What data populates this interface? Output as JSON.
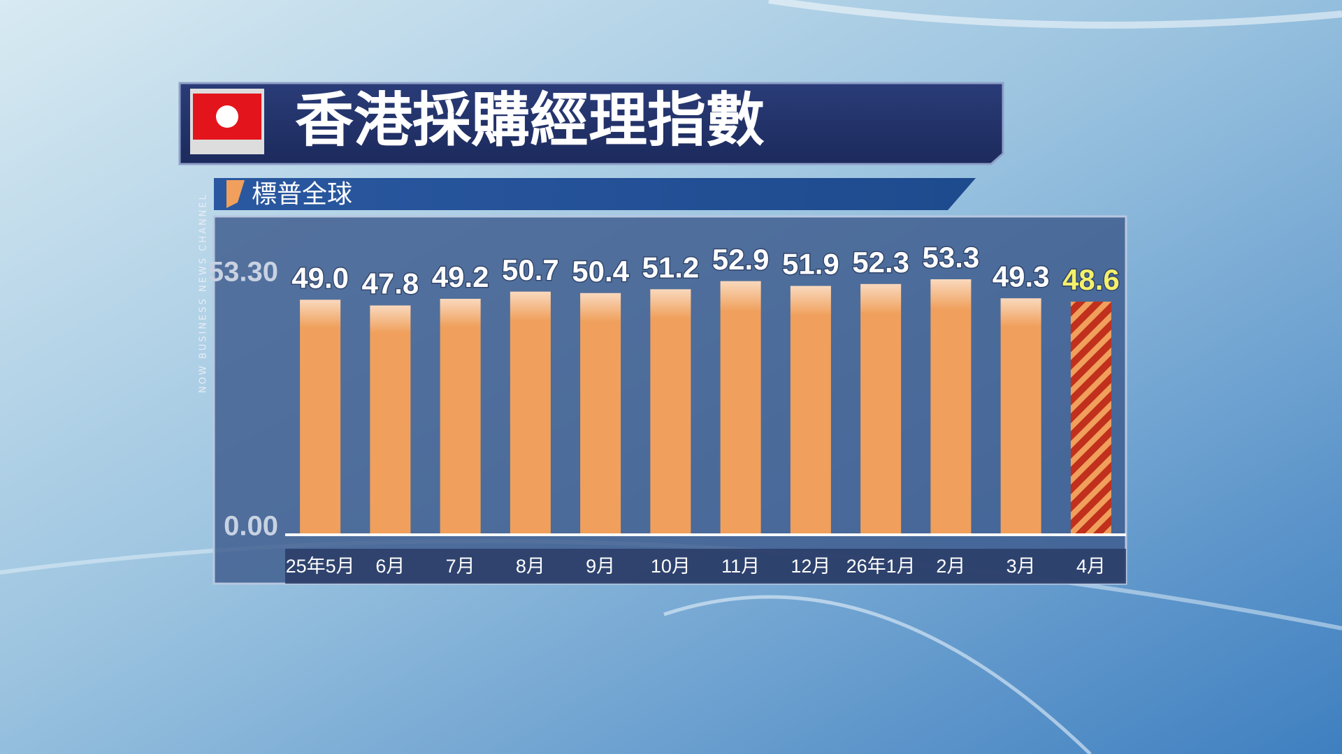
{
  "channel": "NOW BUSINESS NEWS CHANNEL",
  "chart_data": {
    "type": "bar",
    "title": "香港採購經理指數",
    "subtitle": "標普全球",
    "categories": [
      "25年5月",
      "6月",
      "7月",
      "8月",
      "9月",
      "10月",
      "11月",
      "12月",
      "26年1月",
      "2月",
      "3月",
      "4月"
    ],
    "values": [
      49,
      47.8,
      49.2,
      50.7,
      50.4,
      51.2,
      52.9,
      51.9,
      52.3,
      53.3,
      49.3,
      48.6
    ],
    "value_labels": [
      "49.0",
      "47.8",
      "49.2",
      "50.7",
      "50.4",
      "51.2",
      "52.9",
      "51.9",
      "52.3",
      "53.3",
      "49.3",
      "48.6"
    ],
    "color": "#f0a05c",
    "colors": [
      "#f0a05c",
      "#f0a05c",
      "#f0a05c",
      "#f0a05c",
      "#f0a05c",
      "#f0a05c",
      "#f0a05c",
      "#f0a05c",
      "#f0a05c",
      "#f0a05c",
      "#f0a05c",
      "#c0301c"
    ],
    "ylim": [
      0,
      53.3
    ],
    "yticks": [
      {
        "value": 0,
        "label": "0.00"
      },
      {
        "value": 53.3,
        "label": "53.30"
      }
    ],
    "grid": false
  }
}
